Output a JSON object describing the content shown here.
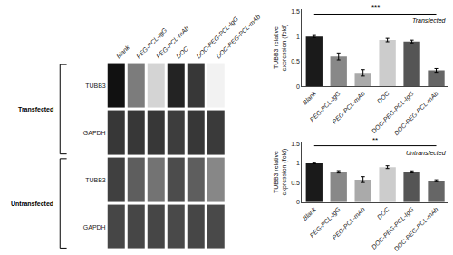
{
  "chart_data": [
    {
      "type": "heatmap",
      "categories": [
        "Blank",
        "PEG-PCL-IgG",
        "PEG-PCL-mAb",
        "DOC",
        "DOC-PEG-PCL-IgG",
        "DOC-PEG-PCL-mAb"
      ],
      "rows": [
        "TUBB3",
        "GAPDH",
        "TUBB3",
        "GAPDH"
      ],
      "row_groups": [
        "Transfected",
        "Transfected",
        "Untransfected",
        "Untransfected"
      ],
      "cells": [
        [
          0.88,
          0.52,
          0.22,
          0.82,
          0.75,
          0.12
        ],
        [
          0.75,
          0.75,
          0.75,
          0.73,
          0.75,
          0.74
        ],
        [
          0.72,
          0.62,
          0.55,
          0.68,
          0.62,
          0.48
        ],
        [
          0.7,
          0.7,
          0.7,
          0.69,
          0.7,
          0.69
        ]
      ]
    },
    {
      "type": "bar",
      "categories": [
        "Blank",
        "PEG-PCL-IgG",
        "PEG-PCL-mAb",
        "DOC",
        "DOC-PEG-PCL-IgG",
        "DOC-PEG-PCL-mAb"
      ],
      "values": [
        1.0,
        0.6,
        0.27,
        0.93,
        0.9,
        0.32
      ],
      "errors": [
        0.02,
        0.07,
        0.065,
        0.035,
        0.028,
        0.038
      ],
      "colors": [
        "#1a1a1a",
        "#888888",
        "#aaaaaa",
        "#cccccc",
        "#555555",
        "#666666"
      ],
      "ylabel": "TUBB3 relative\nexpression (fold)",
      "ylim": [
        0,
        1.55
      ],
      "yticks": [
        0,
        0.5,
        1,
        1.5
      ],
      "annotation": "Transfected",
      "significance": {
        "text": "***",
        "from": "Blank",
        "to": "DOC-PEG-PCL-mAb",
        "y": 1.45
      },
      "grid": false
    },
    {
      "type": "bar",
      "categories": [
        "Blank",
        "PEG-PCL-IgG",
        "PEG-PCL-mAb",
        "DOC",
        "DOC-PEG-PCL-IgG",
        "DOC-PEG-PCL-mAb"
      ],
      "values": [
        1.0,
        0.78,
        0.58,
        0.9,
        0.78,
        0.55
      ],
      "errors": [
        0.015,
        0.03,
        0.075,
        0.035,
        0.025,
        0.025
      ],
      "colors": [
        "#1a1a1a",
        "#888888",
        "#aaaaaa",
        "#cccccc",
        "#555555",
        "#666666"
      ],
      "ylabel": "TUBB3 relative\nexpression (fold)",
      "ylim": [
        0,
        1.55
      ],
      "yticks": [
        0,
        0.5,
        1,
        1.5
      ],
      "annotation": "Untransfected",
      "significance": {
        "text": "**",
        "from": "Blank",
        "to": "DOC-PEG-PCL-mAb",
        "y": 1.45
      },
      "grid": false
    }
  ]
}
